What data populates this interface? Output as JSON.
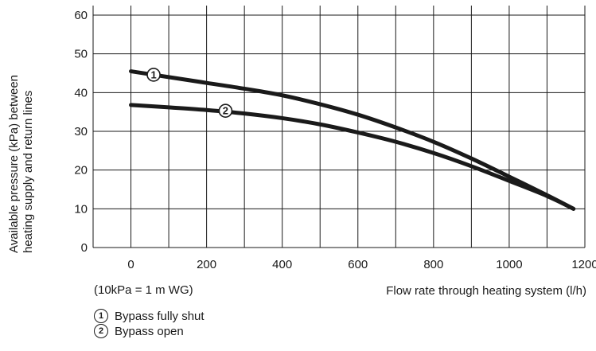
{
  "chart_data": {
    "type": "line",
    "xlabel": "Flow rate through heating system (l/h)",
    "ylabel_line1": "Available pressure (kPa) between",
    "ylabel_line2": "heating supply and return lines",
    "xlim": [
      -100,
      1200
    ],
    "ylim": [
      0,
      60
    ],
    "x_ticks": [
      0,
      200,
      400,
      600,
      800,
      1000,
      1200
    ],
    "y_ticks": [
      0,
      10,
      20,
      30,
      40,
      50,
      60
    ],
    "grid": true,
    "series": [
      {
        "name": "Bypass fully shut",
        "marker_label": "1",
        "marker_at": [
          60,
          44.6
        ],
        "points": [
          [
            0,
            45.5
          ],
          [
            100,
            44
          ],
          [
            200,
            42.5
          ],
          [
            300,
            41
          ],
          [
            400,
            39.3
          ],
          [
            500,
            37
          ],
          [
            600,
            34.3
          ],
          [
            700,
            31
          ],
          [
            800,
            27.3
          ],
          [
            900,
            23
          ],
          [
            1000,
            18.3
          ],
          [
            1100,
            13.5
          ],
          [
            1170,
            10
          ]
        ]
      },
      {
        "name": "Bypass open",
        "marker_label": "2",
        "marker_at": [
          250,
          35.3
        ],
        "points": [
          [
            0,
            36.8
          ],
          [
            100,
            36.2
          ],
          [
            200,
            35.5
          ],
          [
            300,
            34.6
          ],
          [
            400,
            33.4
          ],
          [
            500,
            31.8
          ],
          [
            600,
            29.7
          ],
          [
            700,
            27.3
          ],
          [
            800,
            24.4
          ],
          [
            900,
            21
          ],
          [
            1000,
            17.2
          ],
          [
            1100,
            13.3
          ],
          [
            1170,
            10
          ]
        ]
      }
    ]
  },
  "notes": {
    "conversion": "(10kPa = 1 m WG)"
  },
  "legend": [
    {
      "num": "1",
      "label": "Bypass fully shut"
    },
    {
      "num": "2",
      "label": "Bypass open"
    }
  ]
}
